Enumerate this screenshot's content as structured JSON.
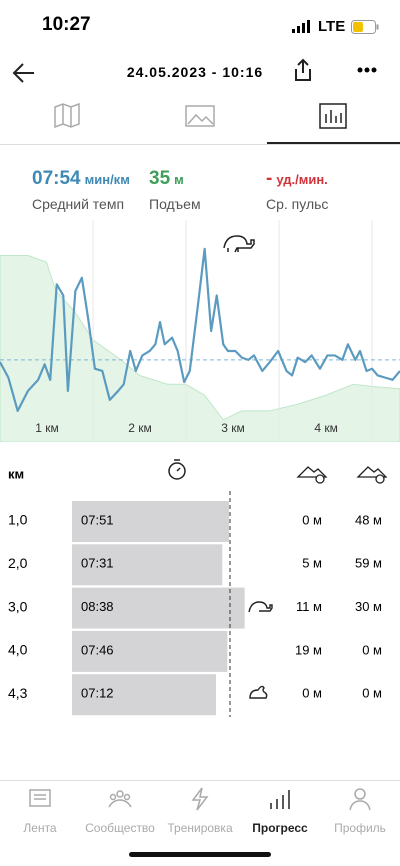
{
  "status": {
    "time": "10:27",
    "network": "LTE"
  },
  "header": {
    "title": "24.05.2023 - 10:16"
  },
  "summary": [
    {
      "value": 474,
      "value_label": "07:54",
      "unit": "мин/км",
      "label": "Средний темп",
      "color": "#3f8ab5"
    },
    {
      "value_label": "35",
      "unit": "м",
      "label": "Подъем",
      "color": "#3f9e5a"
    },
    {
      "value_label": "-",
      "unit": "уд./мин.",
      "label": "Ср. пульс",
      "color": "#d0343a"
    }
  ],
  "chart_data": {
    "type": "line",
    "x": [
      0,
      0.09,
      0.19,
      0.3,
      0.41,
      0.48,
      0.54,
      0.61,
      0.68,
      0.73,
      0.81,
      0.88,
      0.95,
      1.02,
      1.1,
      1.18,
      1.27,
      1.33,
      1.4,
      1.46,
      1.53,
      1.61,
      1.67,
      1.72,
      1.77,
      1.85,
      1.91,
      1.98,
      2.04,
      2.12,
      2.2,
      2.27,
      2.33,
      2.4,
      2.45,
      2.53,
      2.6,
      2.67,
      2.73,
      2.82,
      2.9,
      2.99,
      3.08,
      3.14,
      3.2,
      3.28,
      3.35,
      3.44,
      3.52,
      3.6,
      3.68,
      3.74,
      3.82,
      3.87,
      3.94,
      4.0,
      4.06,
      4.14,
      4.22,
      4.3
    ],
    "series": [
      {
        "color": "#5b9bc0",
        "values": [
          36,
          29,
          14,
          23,
          28,
          35,
          28,
          71,
          66,
          23,
          68,
          74,
          55,
          33,
          32,
          19,
          23,
          26,
          41,
          32,
          39,
          41,
          44,
          54,
          44,
          47,
          41,
          27,
          32,
          59,
          87,
          50,
          66,
          44,
          41,
          41,
          38,
          37,
          39,
          32,
          36,
          41,
          32,
          30,
          38,
          36,
          39,
          33,
          39,
          39,
          37,
          44,
          37,
          41,
          32,
          33,
          30,
          29,
          28,
          32
        ]
      }
    ],
    "area": {
      "color": "#e4f5e8",
      "x": [
        0,
        0.3,
        0.5,
        0.6,
        0.8,
        1.0,
        1.3,
        1.5,
        1.8,
        2.0,
        2.2,
        2.4,
        2.6,
        2.9,
        3.2,
        3.5,
        3.8,
        4.0,
        4.3
      ],
      "values": [
        84,
        84,
        81,
        68,
        59,
        46,
        37,
        30,
        26,
        26,
        21,
        10,
        14,
        14,
        17,
        21,
        26,
        25,
        24
      ]
    },
    "average": 37,
    "xlim": [
      0,
      4.3
    ],
    "ylim": [
      0,
      100
    ],
    "xticks": [
      {
        "value": 1,
        "label": "1 км"
      },
      {
        "value": 2,
        "label": "2 км"
      },
      {
        "value": 3,
        "label": "3 км"
      },
      {
        "value": 4,
        "label": "4 км"
      }
    ]
  },
  "splits": {
    "header": "км",
    "km": [
      "1,0",
      "2,0",
      "3,0",
      "4,0",
      "4,3"
    ],
    "pace": [
      471,
      451,
      518,
      466,
      432
    ],
    "value_labels": [
      "07:51",
      "07:31",
      "08:38",
      "07:46",
      "07:12"
    ],
    "ascent": [
      "0 м",
      "5 м",
      "11 м",
      "19 м",
      "0 м"
    ],
    "descent": [
      "48 м",
      "59 м",
      "30 м",
      "0 м",
      "0 м"
    ]
  },
  "tabbar": [
    "Лента",
    "Сообщество",
    "Тренировка",
    "Прогресс",
    "Профиль"
  ],
  "active_tab": 3
}
